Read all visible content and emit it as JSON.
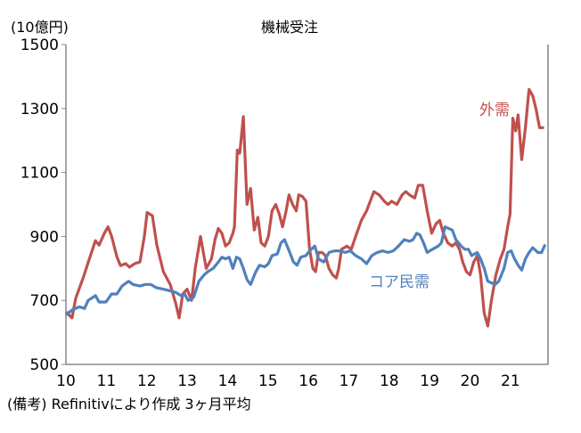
{
  "chart_data": {
    "type": "line",
    "title": "機械受注",
    "ylabel": "(10億円)",
    "note": "(備考) Refinitivにより作成 3ヶ月平均",
    "ylim": [
      500,
      1500
    ],
    "yticks": [
      500,
      700,
      900,
      1100,
      1300,
      1500
    ],
    "xlim": [
      10,
      21.93
    ],
    "xticks": [
      "10",
      "11",
      "12",
      "13",
      "14",
      "15",
      "16",
      "17",
      "18",
      "19",
      "20",
      "21"
    ],
    "grid": false,
    "legend": "inline labels",
    "series": [
      {
        "name": "外需",
        "color": "#c0504d",
        "points": [
          [
            10.0,
            664
          ],
          [
            10.15,
            645
          ],
          [
            10.24,
            706
          ],
          [
            10.44,
            776
          ],
          [
            10.55,
            818
          ],
          [
            10.73,
            887
          ],
          [
            10.82,
            873
          ],
          [
            10.95,
            910
          ],
          [
            11.04,
            930
          ],
          [
            11.13,
            901
          ],
          [
            11.26,
            837
          ],
          [
            11.35,
            809
          ],
          [
            11.48,
            815
          ],
          [
            11.57,
            804
          ],
          [
            11.7,
            815
          ],
          [
            11.83,
            820
          ],
          [
            11.94,
            900
          ],
          [
            12.01,
            975
          ],
          [
            12.14,
            965
          ],
          [
            12.25,
            873
          ],
          [
            12.41,
            790
          ],
          [
            12.58,
            750
          ],
          [
            12.72,
            690
          ],
          [
            12.8,
            645
          ],
          [
            12.89,
            720
          ],
          [
            13.0,
            735
          ],
          [
            13.11,
            700
          ],
          [
            13.2,
            800
          ],
          [
            13.33,
            900
          ],
          [
            13.47,
            800
          ],
          [
            13.6,
            830
          ],
          [
            13.69,
            890
          ],
          [
            13.77,
            925
          ],
          [
            13.86,
            910
          ],
          [
            13.95,
            870
          ],
          [
            14.04,
            880
          ],
          [
            14.13,
            910
          ],
          [
            14.17,
            930
          ],
          [
            14.24,
            1170
          ],
          [
            14.3,
            1160
          ],
          [
            14.39,
            1275
          ],
          [
            14.48,
            1000
          ],
          [
            14.57,
            1050
          ],
          [
            14.66,
            920
          ],
          [
            14.75,
            960
          ],
          [
            14.83,
            880
          ],
          [
            14.92,
            870
          ],
          [
            15.01,
            900
          ],
          [
            15.1,
            980
          ],
          [
            15.19,
            1000
          ],
          [
            15.28,
            970
          ],
          [
            15.36,
            930
          ],
          [
            15.45,
            980
          ],
          [
            15.52,
            1030
          ],
          [
            15.61,
            1000
          ],
          [
            15.7,
            980
          ],
          [
            15.76,
            1030
          ],
          [
            15.85,
            1025
          ],
          [
            15.94,
            1010
          ],
          [
            16.03,
            860
          ],
          [
            16.11,
            800
          ],
          [
            16.18,
            790
          ],
          [
            16.25,
            850
          ],
          [
            16.34,
            850
          ],
          [
            16.42,
            840
          ],
          [
            16.51,
            800
          ],
          [
            16.6,
            780
          ],
          [
            16.69,
            770
          ],
          [
            16.75,
            800
          ],
          [
            16.82,
            860
          ],
          [
            16.95,
            870
          ],
          [
            17.06,
            860
          ],
          [
            17.17,
            900
          ],
          [
            17.31,
            950
          ],
          [
            17.44,
            980
          ],
          [
            17.62,
            1040
          ],
          [
            17.75,
            1030
          ],
          [
            17.88,
            1010
          ],
          [
            17.97,
            1000
          ],
          [
            18.06,
            1010
          ],
          [
            18.19,
            1000
          ],
          [
            18.32,
            1030
          ],
          [
            18.41,
            1040
          ],
          [
            18.5,
            1030
          ],
          [
            18.63,
            1020
          ],
          [
            18.72,
            1060
          ],
          [
            18.83,
            1060
          ],
          [
            18.94,
            980
          ],
          [
            19.05,
            910
          ],
          [
            19.16,
            940
          ],
          [
            19.25,
            950
          ],
          [
            19.34,
            910
          ],
          [
            19.45,
            880
          ],
          [
            19.56,
            870
          ],
          [
            19.65,
            880
          ],
          [
            19.74,
            860
          ],
          [
            19.82,
            820
          ],
          [
            19.91,
            790
          ],
          [
            20.0,
            780
          ],
          [
            20.09,
            820
          ],
          [
            20.18,
            840
          ],
          [
            20.26,
            780
          ],
          [
            20.35,
            660
          ],
          [
            20.44,
            620
          ],
          [
            20.53,
            700
          ],
          [
            20.64,
            780
          ],
          [
            20.75,
            830
          ],
          [
            20.84,
            860
          ],
          [
            20.93,
            930
          ],
          [
            20.99,
            970
          ],
          [
            21.06,
            1270
          ],
          [
            21.13,
            1230
          ],
          [
            21.19,
            1280
          ],
          [
            21.28,
            1140
          ],
          [
            21.37,
            1240
          ],
          [
            21.46,
            1360
          ],
          [
            21.55,
            1340
          ],
          [
            21.63,
            1300
          ],
          [
            21.72,
            1240
          ],
          [
            21.83,
            1240
          ]
        ]
      },
      {
        "name": "コア民需",
        "color": "#4f81bd",
        "points": [
          [
            10.0,
            655
          ],
          [
            10.15,
            670
          ],
          [
            10.33,
            680
          ],
          [
            10.46,
            675
          ],
          [
            10.55,
            700
          ],
          [
            10.73,
            715
          ],
          [
            10.82,
            695
          ],
          [
            10.99,
            695
          ],
          [
            11.13,
            720
          ],
          [
            11.26,
            720
          ],
          [
            11.39,
            745
          ],
          [
            11.55,
            760
          ],
          [
            11.66,
            750
          ],
          [
            11.83,
            745
          ],
          [
            11.96,
            750
          ],
          [
            12.1,
            750
          ],
          [
            12.23,
            740
          ],
          [
            12.41,
            735
          ],
          [
            12.58,
            730
          ],
          [
            12.72,
            725
          ],
          [
            12.85,
            715
          ],
          [
            12.94,
            720
          ],
          [
            13.02,
            700
          ],
          [
            13.16,
            710
          ],
          [
            13.29,
            760
          ],
          [
            13.42,
            780
          ],
          [
            13.51,
            790
          ],
          [
            13.64,
            800
          ],
          [
            13.77,
            820
          ],
          [
            13.86,
            835
          ],
          [
            13.95,
            830
          ],
          [
            14.04,
            835
          ],
          [
            14.13,
            800
          ],
          [
            14.22,
            835
          ],
          [
            14.3,
            830
          ],
          [
            14.39,
            800
          ],
          [
            14.48,
            765
          ],
          [
            14.57,
            750
          ],
          [
            14.7,
            790
          ],
          [
            14.79,
            810
          ],
          [
            14.92,
            805
          ],
          [
            15.01,
            815
          ],
          [
            15.1,
            840
          ],
          [
            15.23,
            845
          ],
          [
            15.32,
            880
          ],
          [
            15.41,
            890
          ],
          [
            15.54,
            850
          ],
          [
            15.63,
            820
          ],
          [
            15.72,
            810
          ],
          [
            15.81,
            835
          ],
          [
            15.94,
            840
          ],
          [
            16.03,
            855
          ],
          [
            16.16,
            870
          ],
          [
            16.25,
            830
          ],
          [
            16.38,
            820
          ],
          [
            16.51,
            850
          ],
          [
            16.64,
            855
          ],
          [
            16.78,
            855
          ],
          [
            16.91,
            850
          ],
          [
            17.04,
            855
          ],
          [
            17.17,
            840
          ],
          [
            17.31,
            830
          ],
          [
            17.44,
            815
          ],
          [
            17.57,
            840
          ],
          [
            17.7,
            850
          ],
          [
            17.84,
            855
          ],
          [
            17.97,
            850
          ],
          [
            18.1,
            855
          ],
          [
            18.23,
            870
          ],
          [
            18.37,
            890
          ],
          [
            18.5,
            885
          ],
          [
            18.59,
            890
          ],
          [
            18.68,
            910
          ],
          [
            18.76,
            905
          ],
          [
            18.85,
            880
          ],
          [
            18.94,
            850
          ],
          [
            19.07,
            860
          ],
          [
            19.21,
            870
          ],
          [
            19.29,
            880
          ],
          [
            19.38,
            930
          ],
          [
            19.47,
            925
          ],
          [
            19.56,
            920
          ],
          [
            19.65,
            890
          ],
          [
            19.78,
            870
          ],
          [
            19.87,
            860
          ],
          [
            19.96,
            860
          ],
          [
            20.04,
            840
          ],
          [
            20.18,
            850
          ],
          [
            20.26,
            830
          ],
          [
            20.35,
            800
          ],
          [
            20.44,
            760
          ],
          [
            20.53,
            755
          ],
          [
            20.62,
            750
          ],
          [
            20.71,
            760
          ],
          [
            20.84,
            800
          ],
          [
            20.93,
            850
          ],
          [
            21.02,
            855
          ],
          [
            21.1,
            830
          ],
          [
            21.19,
            810
          ],
          [
            21.28,
            795
          ],
          [
            21.37,
            830
          ],
          [
            21.46,
            850
          ],
          [
            21.55,
            865
          ],
          [
            21.68,
            850
          ],
          [
            21.77,
            850
          ],
          [
            21.86,
            875
          ]
        ]
      }
    ]
  }
}
